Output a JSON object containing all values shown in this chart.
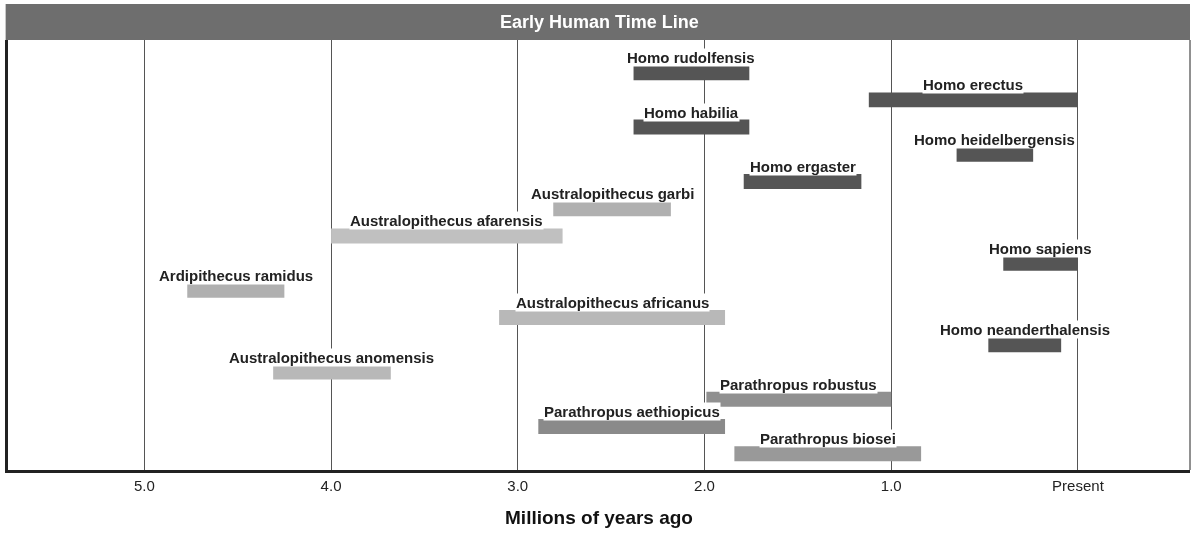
{
  "chart_data": {
    "type": "bar",
    "orientation": "horizontal",
    "title": "Early Human Time Line",
    "xlabel": "Millions of years ago",
    "categories": [
      "Homo rudolfensis",
      "Homo erectus",
      "Homo habilia",
      "Homo heidelbergensis",
      "Homo ergaster",
      "Australopithecus garbi",
      "Australopithecus afarensis",
      "Homo sapiens",
      "Ardipithecus ramidus",
      "Australopithecus africanus",
      "Homo neanderthalensis",
      "Australopithecus anomensis",
      "Parathropus robustus",
      "Parathropus aethiopicus",
      "Parathropus biosei"
    ],
    "base": [
      1.76,
      0.0,
      1.76,
      0.24,
      1.16,
      2.18,
      2.76,
      0.0,
      4.25,
      1.89,
      0.09,
      3.68,
      1.0,
      1.89,
      0.84
    ],
    "values": [
      0.62,
      1.12,
      0.62,
      0.41,
      0.63,
      0.63,
      1.24,
      0.4,
      0.52,
      1.21,
      0.39,
      0.63,
      0.99,
      1.0,
      1.0
    ],
    "colors": [
      "#555555",
      "#555555",
      "#555555",
      "#555555",
      "#555555",
      "#b0b0b0",
      "#c0c0c0",
      "#555555",
      "#b0b0b0",
      "#b8b8b8",
      "#555555",
      "#b8b8b8",
      "#909090",
      "#8a8a8a",
      "#999999"
    ],
    "xlim": [
      5.73,
      -0.6
    ],
    "xticks": [
      {
        "value": 5,
        "label": "5.0"
      },
      {
        "value": 4,
        "label": "4.0"
      },
      {
        "value": 3,
        "label": "3.0"
      },
      {
        "value": 2,
        "label": "2.0"
      },
      {
        "value": 1,
        "label": "1.0"
      },
      {
        "value": 0,
        "label": "Present"
      }
    ],
    "grid": "x",
    "tick_labels": "x"
  }
}
